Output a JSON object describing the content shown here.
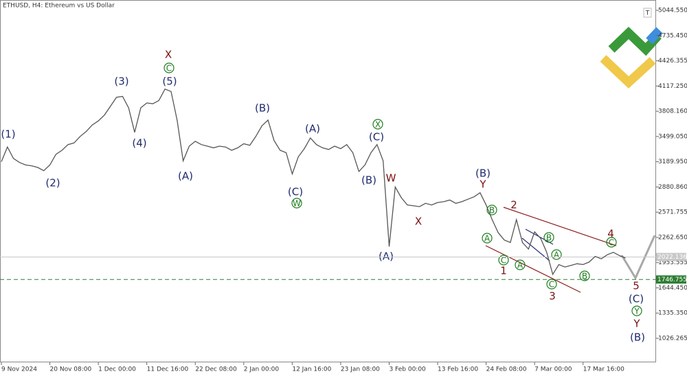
{
  "toolbar_button": "T",
  "chart_data": {
    "type": "line",
    "title": "ETHUSD, H4:  Ethereum vs US Dollar",
    "color": "#555555",
    "categories": [
      "9 Nov 2024",
      null,
      null,
      null,
      null,
      null,
      null,
      null,
      "20 Nov 08:00",
      null,
      null,
      null,
      null,
      null,
      null,
      null,
      "1 Dec 00:00",
      null,
      null,
      null,
      null,
      null,
      null,
      null,
      "11 Dec 16:00",
      null,
      null,
      null,
      null,
      null,
      null,
      null,
      "22 Dec 08:00",
      null,
      null,
      null,
      null,
      null,
      null,
      null,
      "2 Jan 00:00",
      null,
      null,
      null,
      null,
      null,
      null,
      null,
      "12 Jan 16:00",
      null,
      null,
      null,
      null,
      null,
      null,
      null,
      "23 Jan 08:00",
      null,
      null,
      null,
      null,
      null,
      null,
      null,
      "3 Feb 00:00",
      null,
      null,
      null,
      null,
      null,
      null,
      null,
      "13 Feb 16:00",
      null,
      null,
      null,
      null,
      null,
      null,
      null,
      "24 Feb 08:00",
      null,
      null,
      null,
      null,
      null,
      null,
      null,
      "7 Mar 00:00",
      null,
      null,
      null,
      null,
      null,
      null,
      null,
      "17 Mar 16:00",
      null,
      null,
      null,
      null,
      null,
      null,
      null
    ],
    "values": [
      3190,
      3370,
      3230,
      3180,
      3150,
      3140,
      3120,
      3080,
      3150,
      3280,
      3330,
      3400,
      3420,
      3500,
      3560,
      3640,
      3690,
      3760,
      3870,
      3980,
      3990,
      3850,
      3550,
      3850,
      3910,
      3900,
      3940,
      4080,
      4050,
      3700,
      3200,
      3380,
      3440,
      3400,
      3380,
      3360,
      3380,
      3370,
      3330,
      3360,
      3410,
      3390,
      3500,
      3630,
      3700,
      3450,
      3330,
      3300,
      3040,
      3250,
      3350,
      3480,
      3400,
      3360,
      3340,
      3380,
      3350,
      3400,
      3300,
      3070,
      3150,
      3300,
      3400,
      3200,
      2150,
      2880,
      2750,
      2660,
      2650,
      2640,
      2680,
      2660,
      2690,
      2700,
      2720,
      2680,
      2700,
      2730,
      2760,
      2810,
      2660,
      2480,
      2320,
      2230,
      2200,
      2480,
      2200,
      2120,
      2330,
      2250,
      2080,
      1810,
      1930,
      1900,
      1920,
      1940,
      1930,
      1960,
      2030,
      2000,
      2050,
      2080,
      2040,
      2010
    ],
    "ylim": [
      732,
      5171
    ],
    "yticks": [
      {
        "value": 5044.55,
        "label": "5044.550"
      },
      {
        "value": 4735.45,
        "label": "4735.450"
      },
      4426.355,
      {
        "value": 4117.25,
        "label": "4117.250"
      },
      {
        "value": 3808.16,
        "label": "3808.160"
      },
      {
        "value": 3499.05,
        "label": "3499.050"
      },
      {
        "value": 3189.95,
        "label": "3189.950"
      },
      {
        "value": 2880.86,
        "label": "2880.860"
      },
      2571.755,
      {
        "value": 2262.65,
        "label": "2262.650"
      },
      1953.555,
      {
        "value": 1644.45,
        "label": "1644.450"
      },
      {
        "value": 1335.35,
        "label": "1335.350"
      },
      1026.265
    ],
    "grid": false,
    "hlines": [
      {
        "value": 2022.136,
        "color": "#c8c8c8",
        "dashed": false
      },
      {
        "value": 1746.755,
        "color": "#2e7d32",
        "dashed": true
      }
    ],
    "wave_labels": [
      "(1)",
      "(2)",
      "(3)",
      "(4)",
      "(5)",
      "(A)",
      "(B)",
      "(C)",
      "(A)",
      "(B)",
      "(C)",
      "(A)",
      "(B)",
      "(C)",
      "(B)",
      "X",
      "W",
      "X",
      "Y",
      "1",
      "2",
      "3",
      "4",
      "5",
      "Y",
      "C",
      "X",
      "W",
      "B",
      "A",
      "C",
      "A",
      "B",
      "A",
      "C",
      "B",
      "C",
      "Y"
    ]
  }
}
